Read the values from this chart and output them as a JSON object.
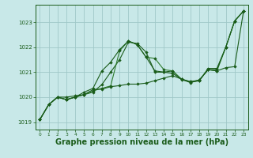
{
  "background_color": "#c8e8e8",
  "grid_color": "#a0c8c8",
  "line_color_dark": "#1a5c1a",
  "line_color_mid": "#2e7d2e",
  "xlabel": "Graphe pression niveau de la mer (hPa)",
  "xlabel_fontsize": 7,
  "xlim": [
    -0.5,
    23.5
  ],
  "ylim": [
    1018.7,
    1023.7
  ],
  "yticks": [
    1019,
    1020,
    1021,
    1022,
    1023
  ],
  "xticks": [
    0,
    1,
    2,
    3,
    4,
    5,
    6,
    7,
    8,
    9,
    10,
    11,
    12,
    13,
    14,
    15,
    16,
    17,
    18,
    19,
    20,
    21,
    22,
    23
  ],
  "series": [
    [
      1019.1,
      1019.7,
      1020.0,
      1020.0,
      1020.05,
      1020.1,
      1020.2,
      1020.5,
      1021.0,
      1021.5,
      1022.2,
      1022.15,
      1021.8,
      1021.0,
      1021.0,
      1021.05,
      1020.7,
      1020.6,
      1020.65,
      1021.15,
      1021.15,
      1022.0,
      1023.05,
      1023.45
    ],
    [
      1019.1,
      1019.7,
      1020.0,
      1019.9,
      1020.0,
      1020.1,
      1020.25,
      1020.35,
      1020.45,
      1021.85,
      1022.25,
      1022.1,
      1021.6,
      1021.55,
      1021.1,
      1021.05,
      1020.72,
      1020.62,
      1020.68,
      1021.1,
      1021.05,
      1022.0,
      1023.05,
      1023.45
    ],
    [
      1019.1,
      1019.7,
      1020.0,
      1019.9,
      1020.0,
      1020.2,
      1020.35,
      1021.05,
      1021.4,
      1021.9,
      1022.25,
      1022.1,
      1021.6,
      1021.05,
      1021.0,
      1020.95,
      1020.72,
      1020.58,
      1020.68,
      1021.1,
      1021.1,
      1022.0,
      1023.05,
      1023.45
    ],
    [
      1019.1,
      1019.7,
      1020.0,
      1019.9,
      1020.0,
      1020.1,
      1020.3,
      1020.32,
      1020.42,
      1020.46,
      1020.52,
      1020.52,
      1020.56,
      1020.66,
      1020.76,
      1020.86,
      1020.72,
      1020.62,
      1020.67,
      1021.1,
      1021.05,
      1021.18,
      1021.22,
      1023.45
    ]
  ]
}
